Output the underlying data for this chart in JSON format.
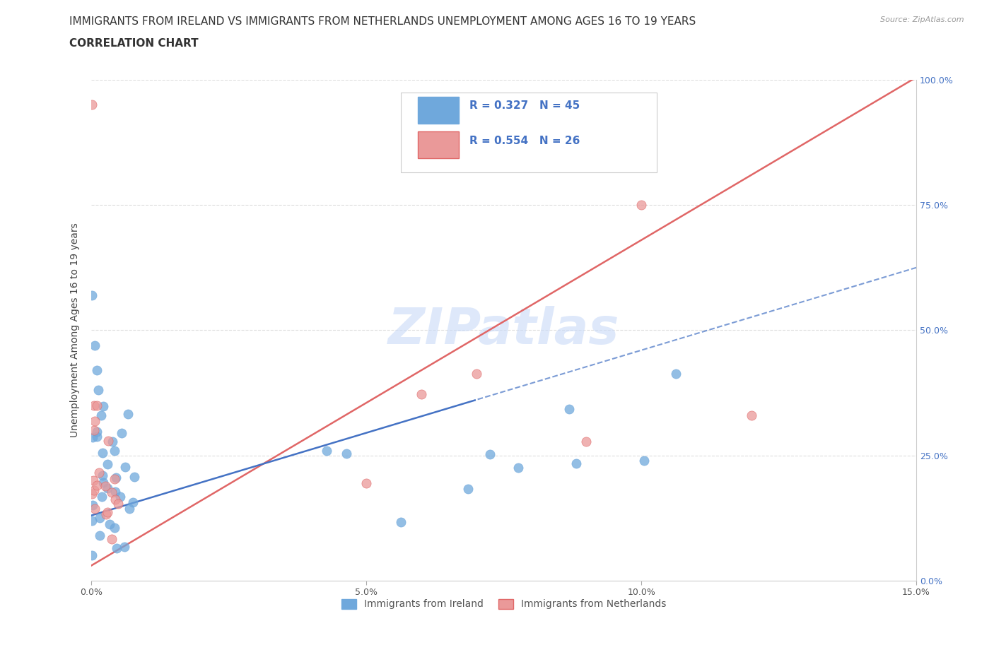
{
  "title_line1": "IMMIGRANTS FROM IRELAND VS IMMIGRANTS FROM NETHERLANDS UNEMPLOYMENT AMONG AGES 16 TO 19 YEARS",
  "title_line2": "CORRELATION CHART",
  "source": "Source: ZipAtlas.com",
  "ylabel": "Unemployment Among Ages 16 to 19 years",
  "xmin": 0.0,
  "xmax": 0.15,
  "ymin": 0.0,
  "ymax": 1.0,
  "ireland_color": "#6fa8dc",
  "ireland_edge": "#6fa8dc",
  "netherlands_color": "#ea9999",
  "netherlands_edge": "#e06666",
  "ireland_line_color": "#4472c4",
  "netherlands_line_color": "#e06666",
  "ireland_R": 0.327,
  "ireland_N": 45,
  "netherlands_R": 0.554,
  "netherlands_N": 26,
  "legend_label_ireland": "Immigrants from Ireland",
  "legend_label_netherlands": "Immigrants from Netherlands",
  "watermark": "ZIPatlas",
  "watermark_color": "#c9daf8",
  "background_color": "#ffffff",
  "title_fontsize": 11,
  "axis_label_fontsize": 10,
  "tick_fontsize": 9,
  "legend_fontsize": 11,
  "right_tick_color": "#4472c4",
  "grid_color": "#dddddd"
}
